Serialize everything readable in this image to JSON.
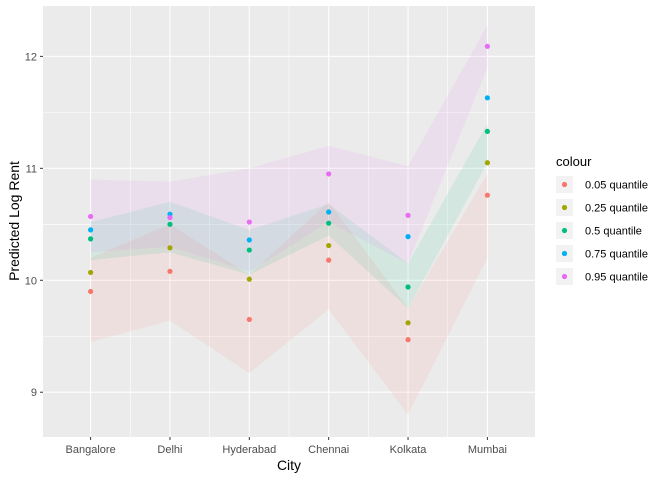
{
  "chart_data": {
    "type": "scatter",
    "categories": [
      "Bangalore",
      "Delhi",
      "Hyderabad",
      "Chennai",
      "Kolkata",
      "Mumbai"
    ],
    "xlabel": "City",
    "ylabel": "Predicted Log Rent",
    "ylim": [
      8.6,
      12.45
    ],
    "yticks": [
      9,
      10,
      11,
      12
    ],
    "ytick_labels": [
      "9",
      "10",
      "11",
      "12"
    ],
    "grid": true,
    "legend_position": "right",
    "legend_title": "colour",
    "series": [
      {
        "name": "0.05 quantile",
        "color": "#F8766D",
        "values": [
          9.9,
          10.08,
          9.65,
          10.18,
          9.47,
          10.76
        ],
        "band_low": [
          9.45,
          9.64,
          9.17,
          9.74,
          8.8,
          10.2
        ],
        "band_high": [
          10.2,
          10.5,
          10.05,
          10.7,
          9.75,
          10.95
        ]
      },
      {
        "name": "0.25 quantile",
        "color": "#A3A500",
        "values": [
          10.07,
          10.29,
          10.01,
          10.31,
          9.62,
          11.05
        ]
      },
      {
        "name": "0.5 quantile",
        "color": "#00BF7D",
        "values": [
          10.37,
          10.5,
          10.27,
          10.51,
          9.94,
          11.33
        ],
        "band_low": [
          10.18,
          10.25,
          10.05,
          10.4,
          9.75,
          11.05
        ],
        "band_high": [
          10.52,
          10.7,
          10.45,
          10.68,
          10.15,
          11.4
        ]
      },
      {
        "name": "0.75 quantile",
        "color": "#00B0F6",
        "values": [
          10.45,
          10.59,
          10.36,
          10.61,
          10.39,
          11.63
        ]
      },
      {
        "name": "0.95 quantile",
        "color": "#E76BF3",
        "values": [
          10.57,
          10.56,
          10.52,
          10.95,
          10.58,
          12.09
        ],
        "band_low": [
          10.25,
          10.3,
          10.08,
          10.52,
          10.15,
          11.9
        ],
        "band_high": [
          10.9,
          10.88,
          11.0,
          11.2,
          11.02,
          12.28
        ]
      }
    ]
  }
}
